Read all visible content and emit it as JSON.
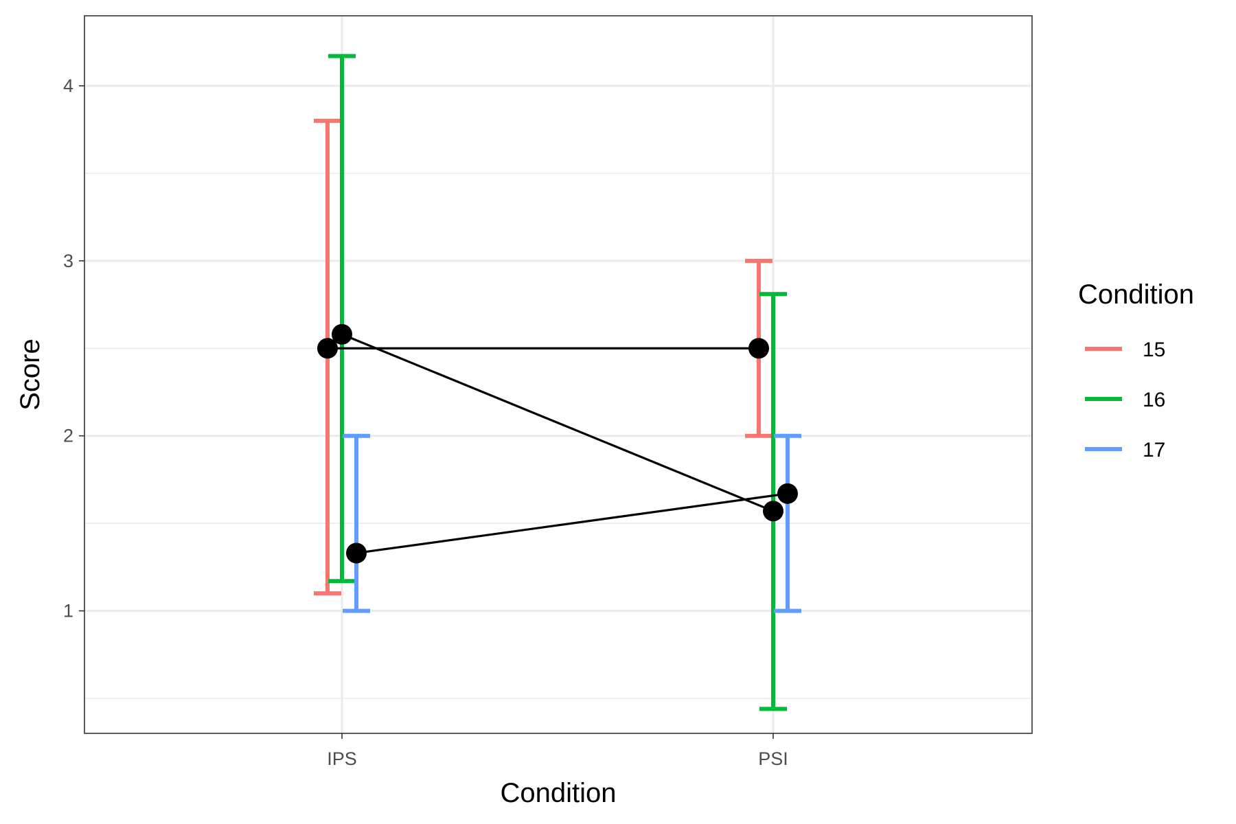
{
  "chart_data": {
    "type": "errorbar-line",
    "xlabel": "Condition",
    "ylabel": "Score",
    "categories": [
      "IPS",
      "PSI"
    ],
    "ylim": [
      0.3,
      4.4
    ],
    "yticks": [
      1,
      2,
      3,
      4
    ],
    "yticks_labels": [
      "1",
      "2",
      "3",
      "4"
    ],
    "grid": true,
    "legend": {
      "title": "Condition",
      "position": "right"
    },
    "series": [
      {
        "name": "15",
        "color": "#F8766D",
        "dodge": -0.5,
        "points": [
          {
            "category": "IPS",
            "mean": 2.5,
            "lower": 1.1,
            "upper": 3.8
          },
          {
            "category": "PSI",
            "mean": 2.5,
            "lower": 2.0,
            "upper": 3.0
          }
        ]
      },
      {
        "name": "16",
        "color": "#00BA38",
        "dodge": 0,
        "points": [
          {
            "category": "IPS",
            "mean": 2.58,
            "lower": 1.17,
            "upper": 4.17
          },
          {
            "category": "PSI",
            "mean": 1.57,
            "lower": 0.44,
            "upper": 2.81
          }
        ]
      },
      {
        "name": "17",
        "color": "#619CFF",
        "dodge": 0.5,
        "points": [
          {
            "category": "IPS",
            "mean": 1.33,
            "lower": 1.0,
            "upper": 2.0
          },
          {
            "category": "PSI",
            "mean": 1.67,
            "lower": 1.0,
            "upper": 2.0
          }
        ]
      }
    ]
  }
}
